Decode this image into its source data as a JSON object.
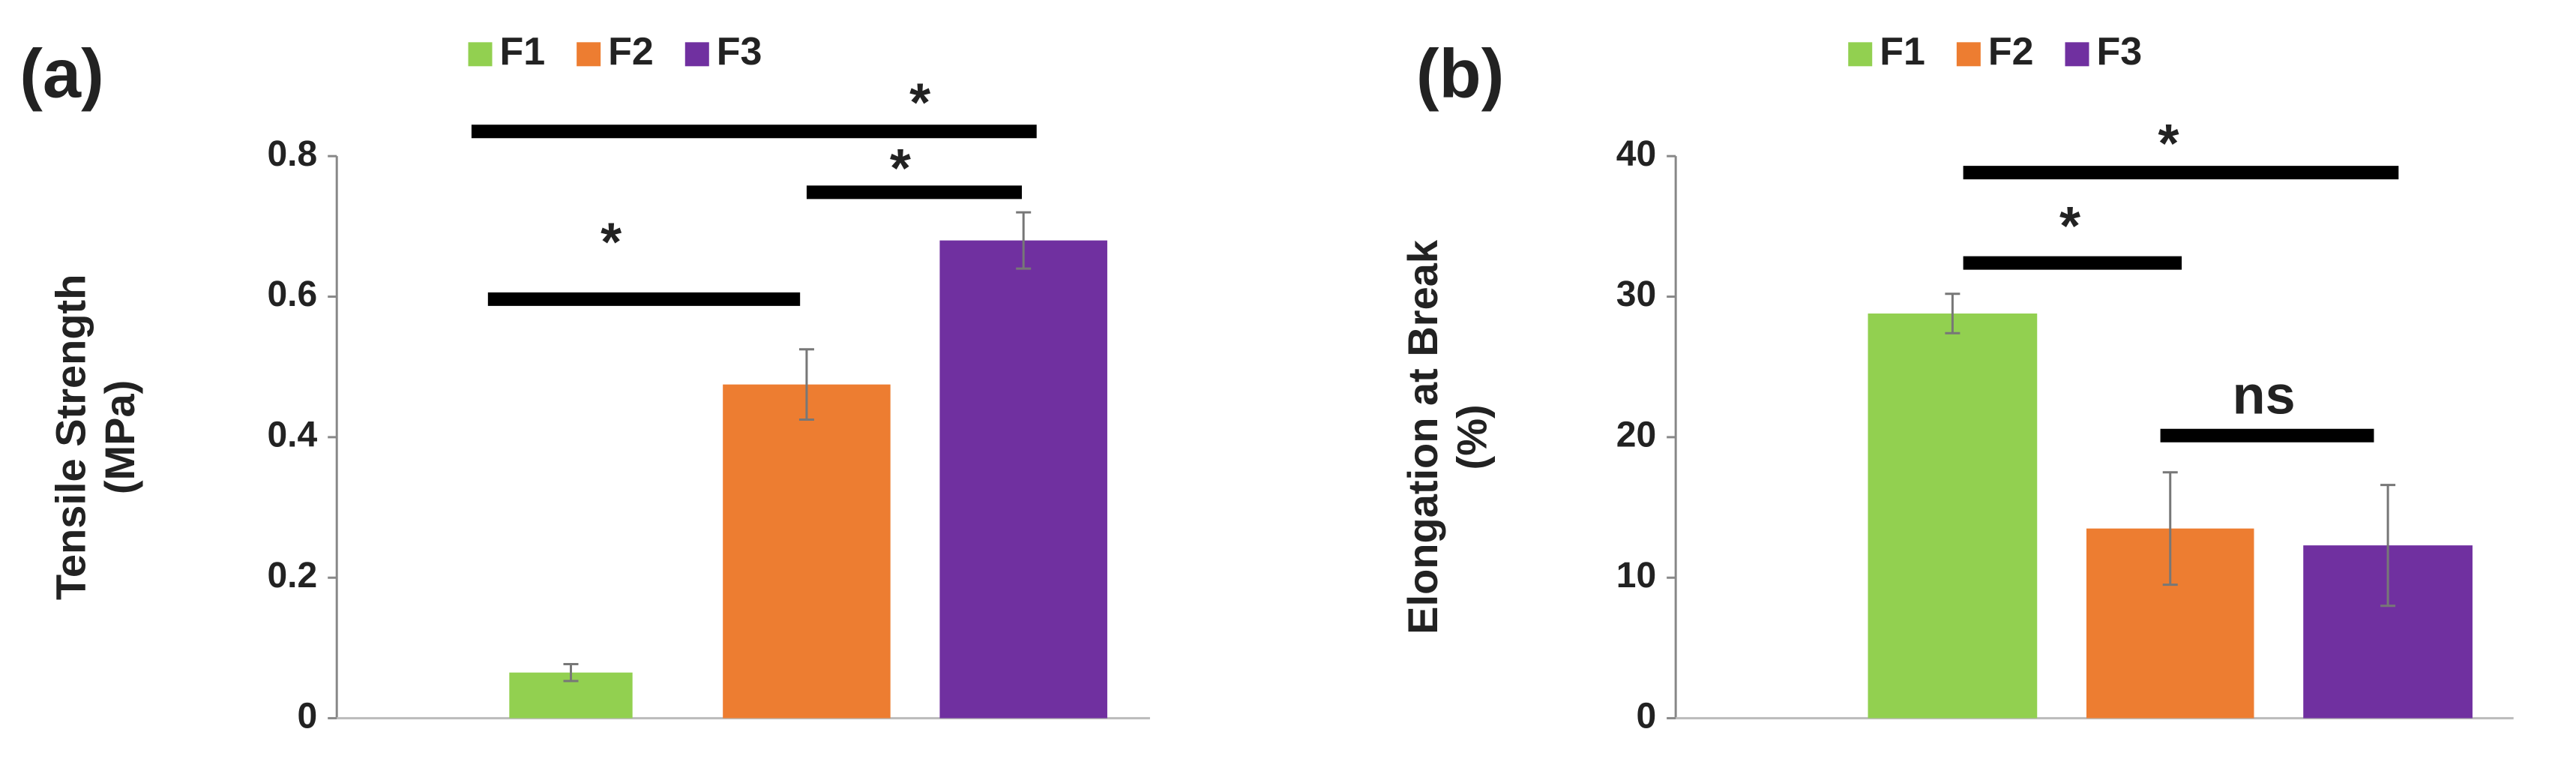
{
  "chart_data": [
    {
      "type": "bar",
      "panel_label": "(a)",
      "ylabel": [
        "Tensile Strength",
        "(MPa)"
      ],
      "categories": [
        "F1",
        "F2",
        "F3"
      ],
      "colors": [
        "#92d050",
        "#ed7d31",
        "#7030a0"
      ],
      "values": [
        0.065,
        0.475,
        0.68
      ],
      "errors": [
        0.012,
        0.05,
        0.04
      ],
      "ylim": [
        0,
        0.8
      ],
      "yticks": [
        0,
        0.2,
        0.4,
        0.6,
        0.8
      ],
      "annotations": [
        "*",
        "*",
        "*"
      ]
    },
    {
      "type": "bar",
      "panel_label": "(b)",
      "ylabel": [
        "Elongation at Break",
        "(%)"
      ],
      "categories": [
        "F1",
        "F2",
        "F3"
      ],
      "colors": [
        "#92d050",
        "#ed7d31",
        "#7030a0"
      ],
      "values": [
        28.8,
        13.5,
        12.3
      ],
      "errors": [
        1.4,
        4,
        4.3
      ],
      "ylim": [
        0,
        40
      ],
      "yticks": [
        0,
        10,
        20,
        30,
        40
      ],
      "annotations": [
        "*",
        "*",
        "ns"
      ]
    }
  ]
}
